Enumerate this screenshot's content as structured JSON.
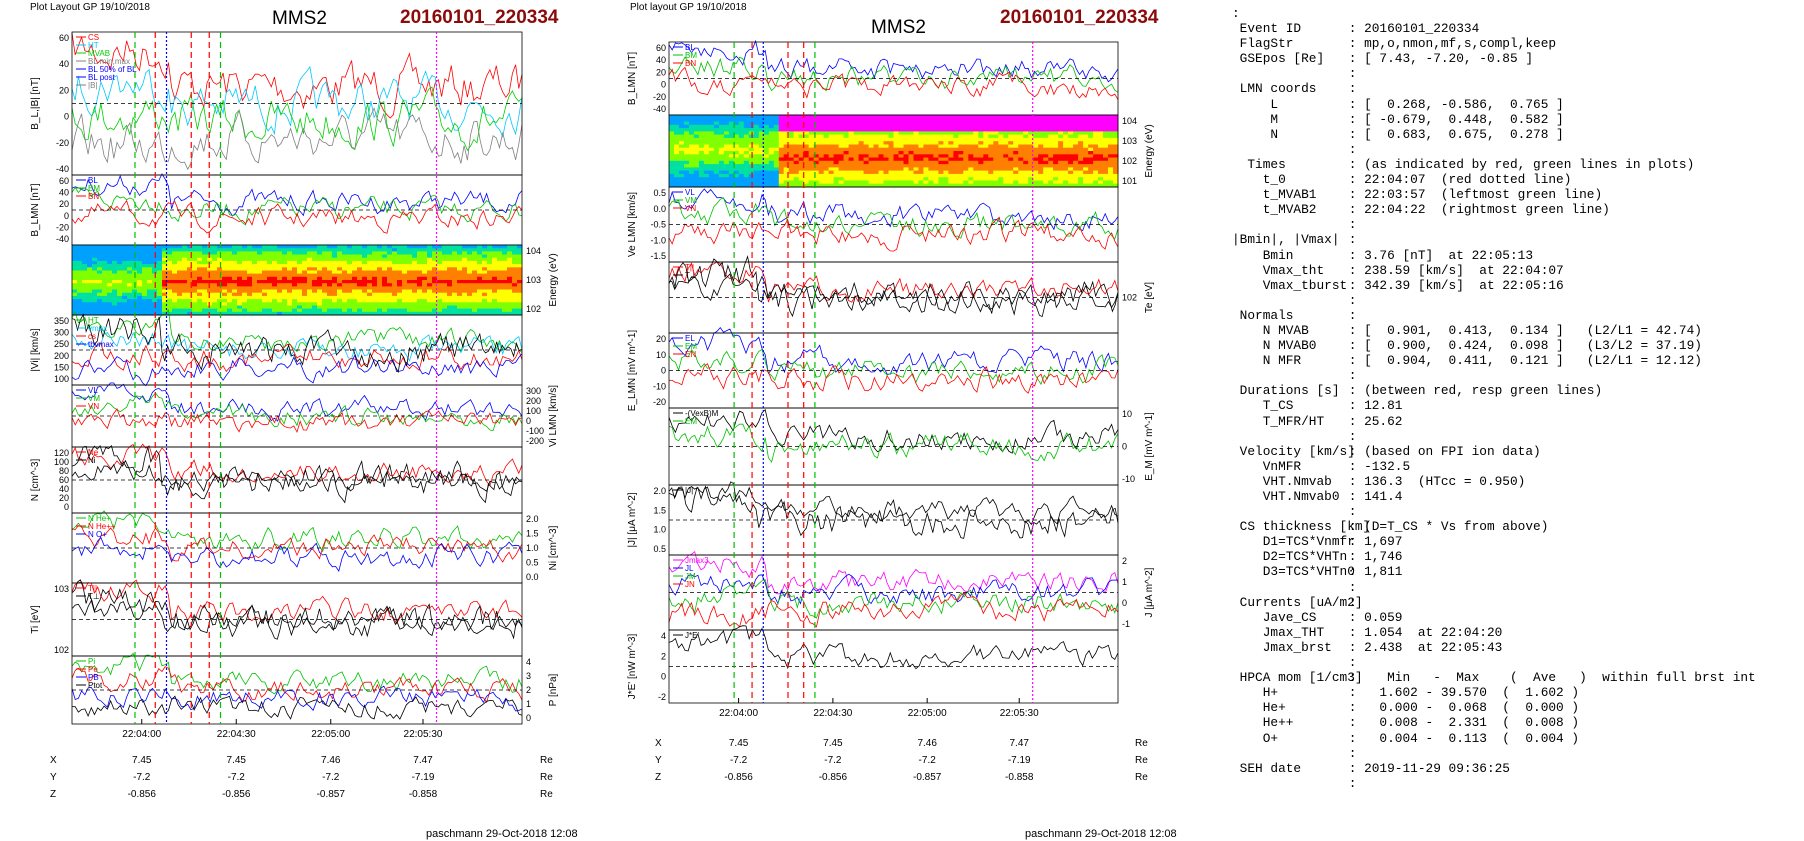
{
  "header": {
    "left_title": "Plot Layout GP 19/10/2018",
    "mid_title": "Plot layout GP 19/10/2018",
    "spacecraft": "MMS2",
    "event": "20160101_220334"
  },
  "footer": {
    "author": "paschmann 29-Oct-2018 12:08"
  },
  "chart_data": {
    "type": "line",
    "time_ticks": [
      "22:04:00",
      "22:04:30",
      "22:05:00",
      "22:05:30"
    ],
    "position": {
      "rows": [
        {
          "label": "X",
          "values": [
            "7.45",
            "7.45",
            "7.46",
            "7.47"
          ],
          "unit": "Re"
        },
        {
          "label": "Y",
          "values": [
            "-7.2",
            "-7.2",
            "-7.2",
            "-7.19"
          ],
          "unit": "Re"
        },
        {
          "label": "Z",
          "values": [
            "-0.856",
            "-0.856",
            "-0.857",
            "-0.858"
          ],
          "unit": "Re"
        }
      ]
    },
    "left_panels": [
      {
        "ylabel": "B_L,|B| [nT]",
        "ticks": [
          "60",
          "40",
          "20",
          "0",
          "-20",
          "-40"
        ],
        "legend": [
          "CS",
          "HT",
          "MVAB",
          "BL min,max",
          "BL 50% of BL",
          "BL post",
          "|B|"
        ],
        "colors": [
          "#ff0000",
          "#00c8ff",
          "#00d000",
          "#808080",
          "#0000ff",
          "#0000ff",
          "#808080"
        ]
      },
      {
        "ylabel": "B_LMN [nT]",
        "ticks": [
          "60",
          "40",
          "20",
          "0",
          "-20",
          "-40"
        ],
        "legend": [
          "BL",
          "BM",
          "BN"
        ],
        "colors": [
          "#0000ff",
          "#00c000",
          "#ff0000"
        ]
      },
      {
        "ylabel": "Energy (eV)",
        "ticks": [
          "10^4",
          "10^3",
          "10^2"
        ],
        "right": true
      },
      {
        "ylabel": "|Vi| [km/s]",
        "ticks": [
          "350",
          "300",
          "250",
          "200",
          "150",
          "100"
        ],
        "legend": [
          "HT",
          "vmax",
          "cs",
          "tbvmax"
        ],
        "colors": [
          "#00c000",
          "#00c8ff",
          "#ff0000",
          "#0000ff"
        ]
      },
      {
        "ylabel": "Vi LMN [km/s]",
        "ticks": [
          "300",
          "200",
          "100",
          "0",
          "-100",
          "-200"
        ],
        "right": true,
        "legend": [
          "VL",
          "VM",
          "VN"
        ],
        "colors": [
          "#0000ff",
          "#00c000",
          "#ff0000"
        ]
      },
      {
        "ylabel": "N [cm^-3]",
        "ticks": [
          "120",
          "100",
          "80",
          "60",
          "40",
          "20",
          "0"
        ],
        "legend": [
          "Ne",
          "Ni"
        ],
        "colors": [
          "#ff0000",
          "#000000"
        ]
      },
      {
        "ylabel": "Ni [cm^-3]",
        "ticks": [
          "2.0",
          "1.5",
          "1.0",
          "0.5",
          "0.0"
        ],
        "right": true,
        "legend": [
          "N He+",
          "N He++",
          "N O+"
        ],
        "colors": [
          "#00c000",
          "#ff0000",
          "#0000ff"
        ]
      },
      {
        "ylabel": "Ti [eV]",
        "ticks": [
          "10^3",
          "10^2"
        ],
        "legend": [
          "T||",
          "T⊥"
        ],
        "colors": [
          "#ff0000",
          "#000000"
        ]
      },
      {
        "ylabel": "P [nPa]",
        "ticks": [
          "4",
          "3",
          "2",
          "1",
          "0"
        ],
        "right": true,
        "legend": [
          "Pi",
          "Pe",
          "PB",
          "Ptot"
        ],
        "colors": [
          "#00c000",
          "#ff0000",
          "#0000ff",
          "#000000"
        ]
      }
    ],
    "mid_panels": [
      {
        "ylabel": "B_LMN [nT]",
        "ticks": [
          "60",
          "40",
          "20",
          "0",
          "-20",
          "-40"
        ],
        "legend": [
          "BL",
          "BM",
          "BN"
        ],
        "colors": [
          "#0000ff",
          "#00c000",
          "#ff0000"
        ]
      },
      {
        "ylabel": "Energy (eV)",
        "ticks": [
          "10^4",
          "10^3",
          "10^2",
          "10^1"
        ],
        "right": true
      },
      {
        "ylabel": "Ve LMN [km/s]",
        "ticks": [
          "0.5",
          "0.0",
          "-0.5",
          "-1.0",
          "-1.5"
        ],
        "legend": [
          "VL",
          "VM",
          "VN"
        ],
        "colors": [
          "#0000ff",
          "#00c000",
          "#ff0000"
        ]
      },
      {
        "ylabel": "Te [eV]",
        "ticks": [
          "10^2"
        ],
        "right": true,
        "legend": [
          "T||",
          "T⊥"
        ],
        "colors": [
          "#ff0000",
          "#000000"
        ]
      },
      {
        "ylabel": "E_LMN [mV m^-1]",
        "ticks": [
          "20",
          "10",
          "0",
          "-10",
          "-20"
        ],
        "legend": [
          "EL",
          "EM",
          "EN"
        ],
        "colors": [
          "#0000ff",
          "#00c000",
          "#ff0000"
        ]
      },
      {
        "ylabel": "E_M [mV m^-1]",
        "ticks": [
          "10",
          "0",
          "-10"
        ],
        "right": true,
        "legend": [
          "-(VexB)M",
          "EM"
        ],
        "colors": [
          "#000000",
          "#00c000"
        ]
      },
      {
        "ylabel": "|J| [μA m^-2]",
        "ticks": [
          "2.0",
          "1.5",
          "1.0",
          "0.5"
        ],
        "legend": [
          "|J|"
        ],
        "colors": [
          "#000000"
        ]
      },
      {
        "ylabel": "J [μA m^-2]",
        "ticks": [
          "2",
          "1",
          "0",
          "-1"
        ],
        "right": true,
        "legend": [
          "Jmax3",
          "JL",
          "JM",
          "JN"
        ],
        "colors": [
          "#ff00ff",
          "#0000ff",
          "#00c000",
          "#ff0000"
        ]
      },
      {
        "ylabel": "J*E' [nW m^-3]",
        "ticks": [
          "4",
          "2",
          "0",
          "-2"
        ],
        "legend": [
          "J*E'"
        ],
        "colors": [
          "#000000"
        ]
      }
    ]
  },
  "summary": [
    {
      "k": ":",
      "v": ""
    },
    {
      "k": " Event ID",
      "v": ": 20160101_220334"
    },
    {
      "k": " FlagStr",
      "v": ": mp,o,nmon,mf,s,compl,keep"
    },
    {
      "k": " GSEpos [Re]",
      "v": ": [ 7.43, -7.20, -0.85 ]"
    },
    {
      "k": "",
      "v": ":"
    },
    {
      "k": " LMN coords",
      "v": ":"
    },
    {
      "k": "     L",
      "v": ": [  0.268, -0.586,  0.765 ]"
    },
    {
      "k": "     M",
      "v": ": [ -0.679,  0.448,  0.582 ]"
    },
    {
      "k": "     N",
      "v": ": [  0.683,  0.675,  0.278 ]"
    },
    {
      "k": "",
      "v": ":"
    },
    {
      "k": "  Times",
      "v": ": (as indicated by red, green lines in plots)"
    },
    {
      "k": "    t_0",
      "v": ": 22:04:07  (red dotted line)"
    },
    {
      "k": "    t_MVAB1",
      "v": ": 22:03:57  (leftmost green line)"
    },
    {
      "k": "    t_MVAB2",
      "v": ": 22:04:22  (rightmost green line)"
    },
    {
      "k": "",
      "v": ":"
    },
    {
      "k": "|Bmin|, |Vmax|",
      "v": ":"
    },
    {
      "k": "    Bmin",
      "v": ": 3.76 [nT]  at 22:05:13"
    },
    {
      "k": "    Vmax_tht",
      "v": ": 238.59 [km/s]  at 22:04:07"
    },
    {
      "k": "    Vmax_tburst",
      "v": ": 342.39 [km/s]  at 22:05:16"
    },
    {
      "k": "",
      "v": ":"
    },
    {
      "k": " Normals",
      "v": ":"
    },
    {
      "k": "    N MVAB",
      "v": ": [  0.901,  0.413,  0.134 ]   (L2/L1 = 42.74)"
    },
    {
      "k": "    N MVAB0",
      "v": ": [  0.900,  0.424,  0.098 ]   (L3/L2 = 37.19)"
    },
    {
      "k": "    N MFR",
      "v": ": [  0.904,  0.411,  0.121 ]   (L2/L1 = 12.12)"
    },
    {
      "k": "",
      "v": ":"
    },
    {
      "k": " Durations [s]",
      "v": ": (between red, resp green lines)"
    },
    {
      "k": "    T_CS",
      "v": ": 12.81"
    },
    {
      "k": "    T_MFR/HT",
      "v": ": 25.62"
    },
    {
      "k": "",
      "v": ":"
    },
    {
      "k": " Velocity [km/s]",
      "v": ": (based on FPI ion data)"
    },
    {
      "k": "    VnMFR",
      "v": ": -132.5"
    },
    {
      "k": "    VHT.Nmvab",
      "v": ": 136.3  (HTcc = 0.950)"
    },
    {
      "k": "    VHT.Nmvab0",
      "v": ": 141.4"
    },
    {
      "k": "",
      "v": ":"
    },
    {
      "k": " CS thickness [km]",
      "v": ": (D=T_CS * Vs from above)"
    },
    {
      "k": "    D1=TCS*Vnmfr",
      "v": ": 1,697"
    },
    {
      "k": "    D2=TCS*VHTn",
      "v": ": 1,746"
    },
    {
      "k": "    D3=TCS*VHTn0",
      "v": ": 1,811"
    },
    {
      "k": "",
      "v": ":"
    },
    {
      "k": " Currents [uA/m2]",
      "v": ":"
    },
    {
      "k": "    Jave_CS",
      "v": ": 0.059"
    },
    {
      "k": "    Jmax_THT",
      "v": ": 1.054  at 22:04:20"
    },
    {
      "k": "    Jmax_brst",
      "v": ": 2.438  at 22:05:43"
    },
    {
      "k": "",
      "v": ":"
    },
    {
      "k": " HPCA mom [1/cm3]",
      "v": ":    Min   -  Max    (  Ave   )  within full brst int"
    },
    {
      "k": "    H+",
      "v": ":   1.602 - 39.570  (  1.602 )"
    },
    {
      "k": "    He+",
      "v": ":   0.000 -  0.068  (  0.000 )"
    },
    {
      "k": "    He++",
      "v": ":   0.008 -  2.331  (  0.008 )"
    },
    {
      "k": "    O+",
      "v": ":   0.004 -  0.113  (  0.004 )"
    },
    {
      "k": "",
      "v": ":"
    },
    {
      "k": " SEH date",
      "v": ": 2019-11-29 09:36:25"
    },
    {
      "k": "",
      "v": ":"
    }
  ]
}
